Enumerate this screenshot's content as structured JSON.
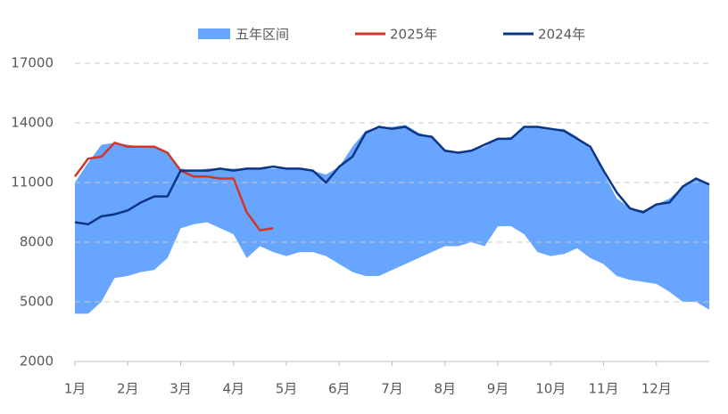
{
  "chart_data": {
    "type": "band-line",
    "categories": [
      "1月",
      null,
      null,
      null,
      "2月",
      null,
      null,
      null,
      "3月",
      null,
      null,
      null,
      "4月",
      null,
      null,
      null,
      "5月",
      null,
      null,
      null,
      "6月",
      null,
      null,
      null,
      "7月",
      null,
      null,
      null,
      "8月",
      null,
      null,
      null,
      "9月",
      null,
      null,
      null,
      "10月",
      null,
      null,
      null,
      "11月",
      null,
      null,
      null,
      "12月",
      null,
      null,
      null,
      null
    ],
    "series": [
      {
        "name": "五年区间",
        "color": "#68a5ff",
        "low": [
          4400,
          4400,
          5000,
          6200,
          6300,
          6500,
          6600,
          7200,
          8700,
          8900,
          9000,
          8700,
          8400,
          7200,
          7800,
          7500,
          7300,
          7500,
          7500,
          7300,
          6900,
          6500,
          6300,
          6300,
          6600,
          6900,
          7200,
          7500,
          7800,
          7800,
          8000,
          7800,
          8800,
          8800,
          8400,
          7500,
          7300,
          7400,
          7700,
          7200,
          6900,
          6300,
          6100,
          6000,
          5900,
          5500,
          5000,
          5000,
          4600
        ],
        "high": [
          11000,
          12000,
          12900,
          13000,
          12900,
          12800,
          12800,
          12500,
          11700,
          11600,
          11700,
          11700,
          11700,
          11700,
          11700,
          11700,
          11700,
          11700,
          11600,
          11400,
          11800,
          12800,
          13600,
          13800,
          13800,
          13900,
          13500,
          13300,
          12600,
          12500,
          12600,
          12800,
          13200,
          13300,
          13800,
          13800,
          13700,
          13700,
          13300,
          12700,
          11500,
          10200,
          9700,
          9600,
          9900,
          10200,
          10800,
          11200,
          10900
        ]
      },
      {
        "name": "2025年",
        "color": "#d0362b",
        "values": [
          11300,
          12200,
          12300,
          13000,
          12800,
          12800,
          12800,
          12500,
          11600,
          11300,
          11300,
          11200,
          11200,
          9500,
          8600,
          8700,
          null,
          null,
          null,
          null,
          null,
          null,
          null,
          null,
          null,
          null,
          null,
          null,
          null,
          null,
          null,
          null,
          null,
          null,
          null,
          null,
          null,
          null,
          null,
          null,
          null,
          null,
          null,
          null,
          null,
          null,
          null,
          null,
          null
        ]
      },
      {
        "name": "2024年",
        "color": "#0c3584",
        "values": [
          9000,
          8900,
          9300,
          9400,
          9600,
          10000,
          10300,
          10300,
          11600,
          11600,
          11600,
          11700,
          11600,
          11700,
          11700,
          11800,
          11700,
          11700,
          11600,
          11000,
          11800,
          12300,
          13500,
          13800,
          13700,
          13800,
          13400,
          13300,
          12600,
          12500,
          12600,
          12900,
          13200,
          13200,
          13800,
          13800,
          13700,
          13600,
          13200,
          12800,
          11600,
          10500,
          9700,
          9500,
          9900,
          10000,
          10800,
          11200,
          10900
        ]
      }
    ],
    "ylim": [
      2000,
      17000
    ],
    "yticks": [
      2000,
      5000,
      8000,
      11000,
      14000,
      17000
    ],
    "grid": true,
    "legend": "top"
  }
}
